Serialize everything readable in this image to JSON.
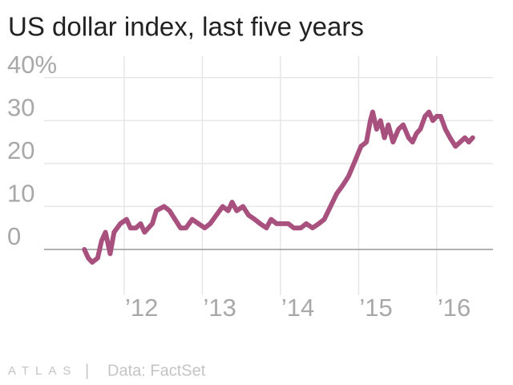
{
  "chart_data": {
    "type": "line",
    "title": "US dollar index, last five years",
    "footer": {
      "logo": "ATLAS",
      "separator": "|",
      "source": "Data: FactSet"
    },
    "xlim": [
      2011,
      2016.75
    ],
    "ylim": [
      -5,
      45
    ],
    "xticks": [
      {
        "value": 2012,
        "label": "’12"
      },
      {
        "value": 2013,
        "label": "’13"
      },
      {
        "value": 2014,
        "label": "’14"
      },
      {
        "value": 2015,
        "label": "’15"
      },
      {
        "value": 2016,
        "label": "’16"
      }
    ],
    "yticks": [
      0,
      10,
      20,
      30,
      {
        "value": 40,
        "label": "40%"
      }
    ],
    "grid": true,
    "series": [
      {
        "color": "#a8507e",
        "x": [
          2011.49,
          2011.54,
          2011.59,
          2011.66,
          2011.71,
          2011.76,
          2011.82,
          2011.87,
          2011.95,
          2012.03,
          2012.08,
          2012.15,
          2012.21,
          2012.26,
          2012.36,
          2012.41,
          2012.51,
          2012.58,
          2012.65,
          2012.72,
          2012.79,
          2012.87,
          2012.95,
          2013.03,
          2013.1,
          2013.18,
          2013.26,
          2013.33,
          2013.38,
          2013.44,
          2013.52,
          2013.59,
          2013.67,
          2013.74,
          2013.82,
          2013.88,
          2013.95,
          2014.02,
          2014.1,
          2014.17,
          2014.26,
          2014.33,
          2014.41,
          2014.49,
          2014.56,
          2014.64,
          2014.72,
          2014.8,
          2014.87,
          2014.94,
          2015.03,
          2015.1,
          2015.15,
          2015.18,
          2015.23,
          2015.28,
          2015.33,
          2015.38,
          2015.44,
          2015.51,
          2015.57,
          2015.64,
          2015.69,
          2015.74,
          2015.79,
          2015.85,
          2015.9,
          2015.95,
          2016.0,
          2016.05,
          2016.11,
          2016.17,
          2016.24,
          2016.3,
          2016.36,
          2016.41,
          2016.46
        ],
        "values": [
          0,
          -2,
          -3,
          -2,
          2,
          4,
          -1,
          4,
          6,
          7,
          5,
          5,
          6,
          4,
          6,
          9,
          10,
          9,
          7,
          5,
          5,
          7,
          6,
          5,
          6,
          8,
          10,
          9,
          11,
          9,
          10,
          8,
          7,
          6,
          5,
          7,
          6,
          6,
          6,
          5,
          5,
          6,
          5,
          6,
          7,
          10,
          13,
          15,
          17,
          20,
          24,
          25,
          30,
          32,
          28,
          30,
          26,
          29,
          25,
          28,
          29,
          26,
          25,
          27,
          28,
          31,
          32,
          30,
          31,
          31,
          28,
          26,
          24,
          25,
          26,
          25,
          26
        ]
      }
    ]
  }
}
